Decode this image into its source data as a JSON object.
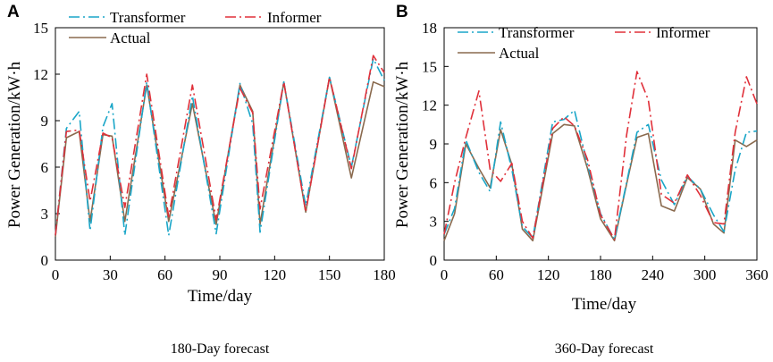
{
  "colors": {
    "transformer": "#1aa6c8",
    "informer": "#e0303a",
    "actual": "#8a6a4e",
    "axis": "#000000"
  },
  "chart_data": [
    {
      "type": "line",
      "panel_label": "A",
      "caption": "180-Day forecast",
      "xlabel": "Time/day",
      "ylabel": "Power Generation/kW·h",
      "xlim": [
        0,
        180
      ],
      "ylim": [
        0,
        15
      ],
      "xticks": [
        0,
        30,
        60,
        90,
        120,
        150,
        180
      ],
      "yticks": [
        0,
        3,
        6,
        9,
        12,
        15
      ],
      "grid": false,
      "series": [
        {
          "name": "Transformer",
          "x": [
            0,
            6,
            13,
            19,
            26,
            31,
            38,
            50,
            62,
            75,
            88,
            101,
            108,
            112,
            125,
            137,
            150,
            162,
            174,
            180
          ],
          "y": [
            1.6,
            8.5,
            9.6,
            1.9,
            8.6,
            10.1,
            1.6,
            11.5,
            1.6,
            10.6,
            1.7,
            11.4,
            8.8,
            1.8,
            11.5,
            3.5,
            11.8,
            6.0,
            13.0,
            11.6
          ]
        },
        {
          "name": "Informer",
          "x": [
            0,
            6,
            13,
            19,
            26,
            31,
            38,
            50,
            62,
            75,
            88,
            101,
            108,
            112,
            125,
            137,
            150,
            162,
            174,
            180
          ],
          "y": [
            1.6,
            8.3,
            8.4,
            3.8,
            8.2,
            7.9,
            3.4,
            12.0,
            2.8,
            11.3,
            2.6,
            11.1,
            9.5,
            3.3,
            11.5,
            3.1,
            11.8,
            5.9,
            13.2,
            12.1
          ]
        },
        {
          "name": "Actual",
          "x": [
            0,
            6,
            13,
            19,
            26,
            31,
            38,
            50,
            62,
            75,
            88,
            101,
            108,
            112,
            125,
            137,
            150,
            162,
            174,
            180
          ],
          "y": [
            1.5,
            7.9,
            8.3,
            2.5,
            8.1,
            8.0,
            2.5,
            11.3,
            2.5,
            10.1,
            2.3,
            11.3,
            9.6,
            2.3,
            11.5,
            3.1,
            11.8,
            5.3,
            11.5,
            11.2
          ]
        }
      ]
    },
    {
      "type": "line",
      "panel_label": "B",
      "caption": "360-Day forecast",
      "xlabel": "Time/day",
      "ylabel": "Power Generation/kW·h",
      "xlim": [
        0,
        360
      ],
      "ylim": [
        0,
        18
      ],
      "xticks": [
        0,
        60,
        120,
        180,
        240,
        300,
        360
      ],
      "yticks": [
        0,
        3,
        6,
        9,
        12,
        15,
        18
      ],
      "grid": false,
      "series": [
        {
          "name": "Transformer",
          "x": [
            0,
            12,
            25,
            40,
            53,
            65,
            78,
            90,
            102,
            125,
            138,
            150,
            165,
            180,
            196,
            210,
            222,
            235,
            250,
            265,
            280,
            295,
            310,
            322,
            335,
            348,
            360
          ],
          "y": [
            2.0,
            4.0,
            9.3,
            6.8,
            5.3,
            10.7,
            7.0,
            2.6,
            1.7,
            10.7,
            10.9,
            11.6,
            7.4,
            3.6,
            1.6,
            6.0,
            9.9,
            10.5,
            6.2,
            4.3,
            6.5,
            5.5,
            3.5,
            2.2,
            7.0,
            9.9,
            10.0
          ]
        },
        {
          "name": "Informer",
          "x": [
            0,
            12,
            25,
            40,
            53,
            65,
            78,
            90,
            102,
            125,
            138,
            150,
            165,
            180,
            196,
            210,
            222,
            235,
            250,
            265,
            280,
            295,
            310,
            322,
            335,
            348,
            360
          ],
          "y": [
            2.0,
            6.0,
            9.5,
            13.1,
            7.0,
            6.1,
            7.5,
            3.0,
            1.7,
            10.2,
            11.1,
            10.4,
            7.8,
            3.5,
            1.6,
            9.7,
            14.6,
            12.4,
            5.1,
            4.4,
            6.6,
            5.0,
            2.9,
            2.8,
            9.9,
            14.2,
            12.1
          ]
        },
        {
          "name": "Actual",
          "x": [
            0,
            12,
            25,
            40,
            53,
            65,
            78,
            90,
            102,
            125,
            138,
            150,
            165,
            180,
            196,
            210,
            222,
            235,
            250,
            265,
            280,
            295,
            310,
            322,
            335,
            348,
            360
          ],
          "y": [
            1.5,
            3.6,
            9.0,
            7.1,
            5.6,
            10.1,
            7.4,
            2.4,
            1.5,
            9.8,
            10.5,
            10.4,
            7.1,
            3.2,
            1.5,
            5.9,
            9.5,
            9.8,
            4.2,
            3.8,
            6.4,
            5.5,
            2.8,
            2.1,
            9.3,
            8.8,
            9.3
          ]
        }
      ]
    }
  ]
}
